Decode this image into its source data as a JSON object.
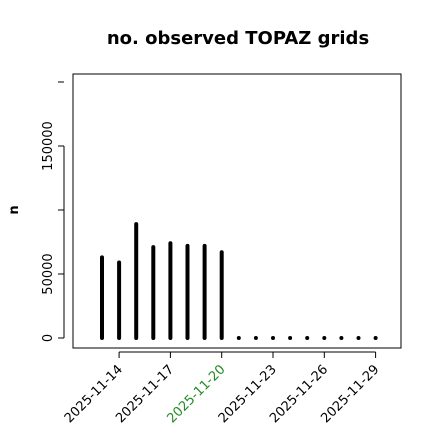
{
  "chart_data": {
    "type": "bar",
    "title": "no. observed TOPAZ grids",
    "xlabel": "",
    "ylabel": "n",
    "ylim": [
      0,
      200000
    ],
    "yticks": [
      0,
      50000,
      150000
    ],
    "x": [
      "2025-11-13",
      "2025-11-14",
      "2025-11-15",
      "2025-11-16",
      "2025-11-17",
      "2025-11-18",
      "2025-11-19",
      "2025-11-20",
      "2025-11-21",
      "2025-11-22",
      "2025-11-23",
      "2025-11-24",
      "2025-11-25",
      "2025-11-26",
      "2025-11-27",
      "2025-11-28",
      "2025-11-29"
    ],
    "values": [
      63000,
      59000,
      89000,
      71000,
      74000,
      72000,
      72000,
      67000,
      0,
      0,
      0,
      0,
      0,
      0,
      0,
      0,
      0
    ],
    "xtick_labels": [
      {
        "label": "2025-11-14",
        "color": "#000000"
      },
      {
        "label": "2025-11-17",
        "color": "#000000"
      },
      {
        "label": "2025-11-20",
        "color": "#228b22"
      },
      {
        "label": "2025-11-23",
        "color": "#000000"
      },
      {
        "label": "2025-11-26",
        "color": "#000000"
      },
      {
        "label": "2025-11-29",
        "color": "#000000"
      }
    ],
    "bar_color": "#000000",
    "grid": false
  }
}
